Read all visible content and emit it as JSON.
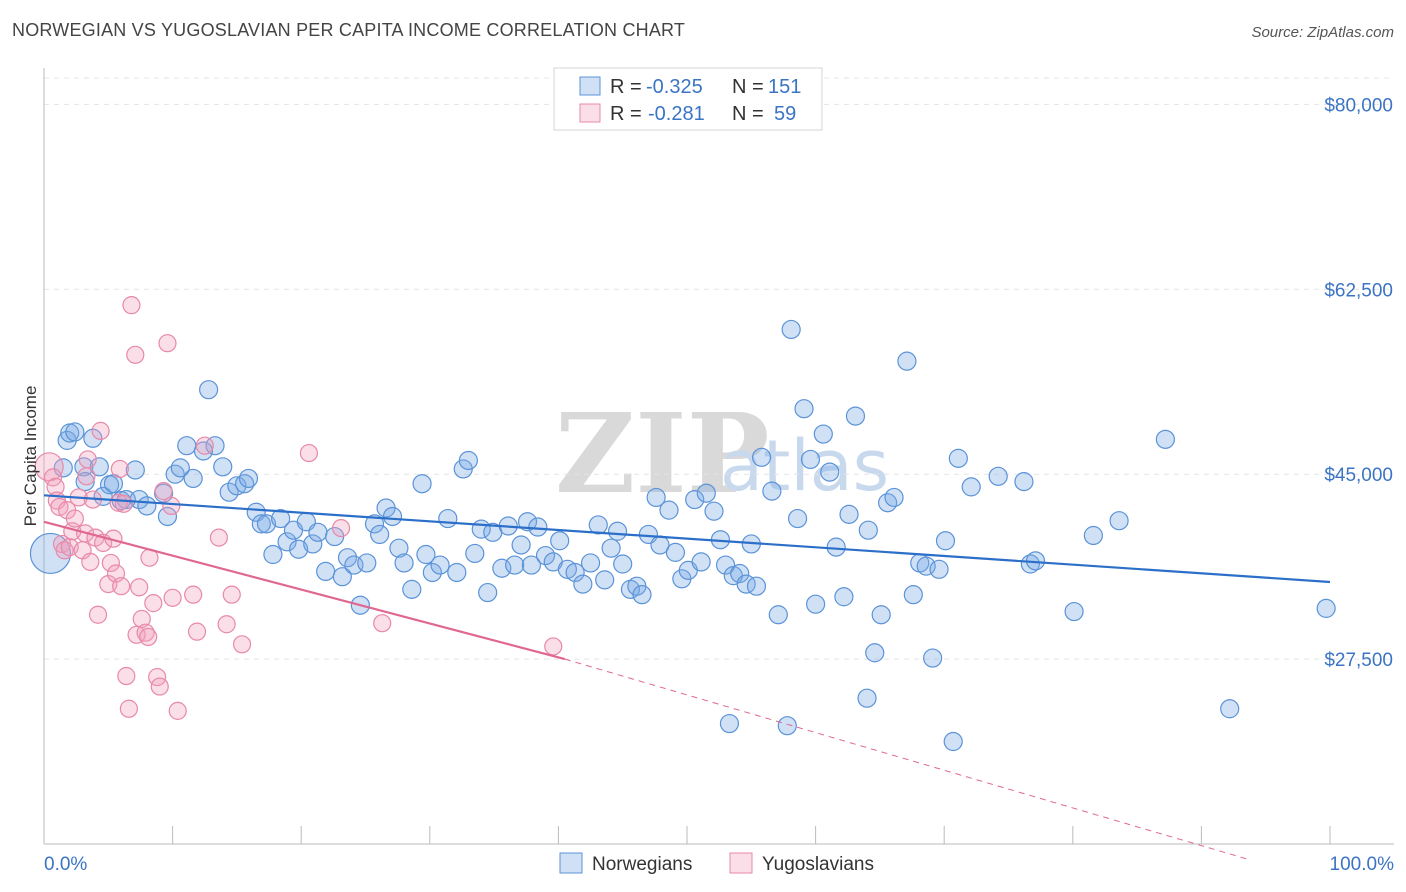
{
  "title": "NORWEGIAN VS YUGOSLAVIAN PER CAPITA INCOME CORRELATION CHART",
  "source": "Source: ZipAtlas.com",
  "colors": {
    "blue": "#5b93d8",
    "blue_fill": "rgba(120,170,230,0.35)",
    "blue_line": "#2c6fc9",
    "pink": "#e889a8",
    "pink_fill": "rgba(240,160,190,0.35)",
    "pink_line": "#e06890",
    "text_blue": "#3b74c4"
  },
  "legend": {
    "row1": {
      "r_label": "R =",
      "r_value": "-0.325",
      "n_label": "N =",
      "n_value": "151"
    },
    "row2": {
      "r_label": "R =",
      "r_value": "-0.281",
      "n_label": "N =",
      "n_value": "59"
    }
  },
  "watermark": {
    "zip": "ZIP",
    "atlas": "atlas"
  },
  "bottom_legend": {
    "series1": "Norwegians",
    "series2": "Yugoslavians"
  },
  "chart_data": {
    "type": "scatter",
    "title": "NORWEGIAN VS YUGOSLAVIAN PER CAPITA INCOME CORRELATION CHART",
    "xlabel": "",
    "ylabel": "Per Capita Income",
    "xlim": [
      0,
      100
    ],
    "ylim": [
      10000,
      82500
    ],
    "x_tick_labels": [
      "0.0%",
      "100.0%"
    ],
    "y_ticks": [
      27500,
      45000,
      62500,
      80000
    ],
    "y_tick_labels": [
      "$27,500",
      "$45,000",
      "$62,500",
      "$80,000"
    ],
    "series": [
      {
        "name": "Norwegians",
        "color": "#5b93d8",
        "trend": {
          "x0": 0,
          "y0": 43000,
          "x1": 100,
          "y1": 34800
        },
        "points": [
          [
            0.5,
            37500
          ],
          [
            1.5,
            45600
          ],
          [
            1.8,
            48200
          ],
          [
            2.0,
            48900
          ],
          [
            2.4,
            49000
          ],
          [
            3.1,
            45700
          ],
          [
            3.2,
            44300
          ],
          [
            3.8,
            48400
          ],
          [
            4.3,
            45700
          ],
          [
            4.6,
            42900
          ],
          [
            5.1,
            44000
          ],
          [
            5.4,
            44100
          ],
          [
            6.0,
            42500
          ],
          [
            6.4,
            42600
          ],
          [
            7.1,
            45400
          ],
          [
            7.4,
            42600
          ],
          [
            8.0,
            42000
          ],
          [
            9.3,
            43200
          ],
          [
            9.6,
            41000
          ],
          [
            10.2,
            45000
          ],
          [
            10.6,
            45600
          ],
          [
            11.1,
            47700
          ],
          [
            11.6,
            44600
          ],
          [
            12.4,
            47200
          ],
          [
            12.8,
            53000
          ],
          [
            13.3,
            47700
          ],
          [
            13.9,
            45700
          ],
          [
            14.4,
            43300
          ],
          [
            15.0,
            43900
          ],
          [
            15.6,
            44100
          ],
          [
            15.9,
            44600
          ],
          [
            16.5,
            41400
          ],
          [
            16.9,
            40300
          ],
          [
            17.3,
            40300
          ],
          [
            17.8,
            37400
          ],
          [
            18.4,
            40800
          ],
          [
            18.9,
            38600
          ],
          [
            19.4,
            39700
          ],
          [
            19.8,
            37900
          ],
          [
            20.4,
            40500
          ],
          [
            20.9,
            38400
          ],
          [
            21.3,
            39500
          ],
          [
            21.9,
            35800
          ],
          [
            22.6,
            39100
          ],
          [
            23.2,
            35300
          ],
          [
            23.6,
            37100
          ],
          [
            24.1,
            36400
          ],
          [
            24.6,
            32600
          ],
          [
            25.1,
            36600
          ],
          [
            25.7,
            40300
          ],
          [
            26.1,
            39300
          ],
          [
            26.6,
            41800
          ],
          [
            27.1,
            41000
          ],
          [
            27.6,
            38000
          ],
          [
            28.0,
            36600
          ],
          [
            28.6,
            34100
          ],
          [
            29.4,
            44100
          ],
          [
            29.7,
            37400
          ],
          [
            30.2,
            35700
          ],
          [
            30.8,
            36400
          ],
          [
            31.4,
            40800
          ],
          [
            32.1,
            35700
          ],
          [
            32.6,
            45500
          ],
          [
            33.0,
            46300
          ],
          [
            33.5,
            37500
          ],
          [
            34.0,
            39800
          ],
          [
            34.5,
            33800
          ],
          [
            34.9,
            39500
          ],
          [
            35.6,
            36100
          ],
          [
            36.1,
            40100
          ],
          [
            36.6,
            36400
          ],
          [
            37.1,
            38300
          ],
          [
            37.6,
            40500
          ],
          [
            37.9,
            36400
          ],
          [
            38.4,
            40000
          ],
          [
            39.0,
            37300
          ],
          [
            39.6,
            36700
          ],
          [
            40.1,
            38700
          ],
          [
            40.7,
            36000
          ],
          [
            41.3,
            35700
          ],
          [
            41.9,
            34600
          ],
          [
            42.5,
            36600
          ],
          [
            43.1,
            40200
          ],
          [
            43.6,
            35000
          ],
          [
            44.1,
            38000
          ],
          [
            44.6,
            39600
          ],
          [
            45.0,
            36500
          ],
          [
            45.6,
            34100
          ],
          [
            46.1,
            34400
          ],
          [
            46.5,
            33600
          ],
          [
            47.0,
            39300
          ],
          [
            47.6,
            42800
          ],
          [
            47.9,
            38300
          ],
          [
            48.6,
            41600
          ],
          [
            49.1,
            37600
          ],
          [
            49.6,
            35100
          ],
          [
            50.1,
            35900
          ],
          [
            50.6,
            42600
          ],
          [
            51.1,
            36700
          ],
          [
            51.5,
            43200
          ],
          [
            52.1,
            41500
          ],
          [
            52.6,
            38800
          ],
          [
            53.0,
            36400
          ],
          [
            53.6,
            35400
          ],
          [
            54.1,
            35600
          ],
          [
            54.6,
            34600
          ],
          [
            55.0,
            38400
          ],
          [
            55.4,
            34400
          ],
          [
            55.8,
            46600
          ],
          [
            56.6,
            43400
          ],
          [
            57.1,
            31700
          ],
          [
            58.1,
            58700
          ],
          [
            58.6,
            40800
          ],
          [
            59.1,
            51200
          ],
          [
            59.6,
            46400
          ],
          [
            60.0,
            32700
          ],
          [
            60.6,
            48800
          ],
          [
            61.1,
            45200
          ],
          [
            61.6,
            38100
          ],
          [
            62.2,
            33400
          ],
          [
            62.6,
            41200
          ],
          [
            63.1,
            50500
          ],
          [
            64.1,
            39700
          ],
          [
            64.6,
            28100
          ],
          [
            65.1,
            31700
          ],
          [
            65.6,
            42300
          ],
          [
            66.1,
            42800
          ],
          [
            67.1,
            55700
          ],
          [
            67.6,
            33600
          ],
          [
            68.1,
            36600
          ],
          [
            68.6,
            36300
          ],
          [
            69.1,
            27600
          ],
          [
            69.6,
            36000
          ],
          [
            70.1,
            38700
          ],
          [
            71.1,
            46500
          ],
          [
            72.1,
            43800
          ],
          [
            74.2,
            44800
          ],
          [
            76.2,
            44300
          ],
          [
            76.7,
            36500
          ],
          [
            77.1,
            36800
          ],
          [
            80.1,
            32000
          ],
          [
            81.6,
            39200
          ],
          [
            83.6,
            40600
          ],
          [
            87.2,
            48300
          ],
          [
            92.2,
            22800
          ],
          [
            99.7,
            32300
          ],
          [
            53.3,
            21400
          ],
          [
            57.8,
            21200
          ],
          [
            70.7,
            19700
          ],
          [
            64.0,
            23800
          ]
        ]
      },
      {
        "name": "Yugoslavians",
        "color": "#e889a8",
        "trend": {
          "x0": 0,
          "y0": 40500,
          "x1": 40.5,
          "y1": 27500,
          "dash_to": {
            "x": 100,
            "y": 8500
          }
        },
        "points": [
          [
            0.4,
            45700
          ],
          [
            0.7,
            44700
          ],
          [
            0.9,
            43800
          ],
          [
            1.0,
            42500
          ],
          [
            1.2,
            41900
          ],
          [
            1.4,
            38400
          ],
          [
            1.6,
            37800
          ],
          [
            1.8,
            41600
          ],
          [
            2.0,
            38100
          ],
          [
            2.2,
            39600
          ],
          [
            2.4,
            40800
          ],
          [
            2.7,
            42800
          ],
          [
            3.0,
            37800
          ],
          [
            3.2,
            39400
          ],
          [
            3.4,
            46400
          ],
          [
            3.6,
            36700
          ],
          [
            3.8,
            42600
          ],
          [
            4.0,
            39000
          ],
          [
            4.2,
            31700
          ],
          [
            4.4,
            49100
          ],
          [
            4.6,
            38500
          ],
          [
            5.0,
            34600
          ],
          [
            5.2,
            36600
          ],
          [
            5.4,
            38900
          ],
          [
            5.6,
            35600
          ],
          [
            5.8,
            42300
          ],
          [
            6.0,
            34400
          ],
          [
            6.2,
            42200
          ],
          [
            6.4,
            25900
          ],
          [
            6.6,
            22800
          ],
          [
            6.8,
            61000
          ],
          [
            7.1,
            56300
          ],
          [
            7.2,
            29800
          ],
          [
            7.4,
            34300
          ],
          [
            7.6,
            31300
          ],
          [
            7.9,
            30000
          ],
          [
            8.2,
            37100
          ],
          [
            8.5,
            32800
          ],
          [
            8.8,
            25800
          ],
          [
            9.0,
            24900
          ],
          [
            9.3,
            43400
          ],
          [
            9.6,
            57400
          ],
          [
            10.0,
            33300
          ],
          [
            10.4,
            22600
          ],
          [
            11.6,
            33600
          ],
          [
            11.9,
            30100
          ],
          [
            12.5,
            47700
          ],
          [
            13.6,
            39000
          ],
          [
            14.2,
            30800
          ],
          [
            14.6,
            33600
          ],
          [
            15.4,
            28900
          ],
          [
            20.6,
            47000
          ],
          [
            23.1,
            39900
          ],
          [
            26.3,
            30900
          ],
          [
            39.6,
            28700
          ],
          [
            3.3,
            44800
          ],
          [
            5.9,
            45500
          ],
          [
            8.1,
            29600
          ],
          [
            9.9,
            42000
          ]
        ]
      }
    ]
  }
}
